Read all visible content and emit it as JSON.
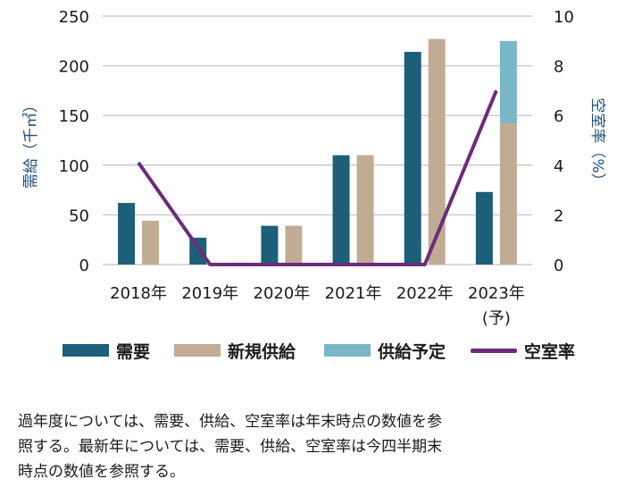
{
  "chart_data": {
    "type": "bar",
    "categories": [
      "2018年",
      "2019年",
      "2020年",
      "2021年",
      "2022年",
      "2023年\n(予)"
    ],
    "ylabel_left": "需給（千㎡）",
    "ylabel_right": "空室率（%）",
    "ylim_left": [
      0,
      250
    ],
    "ylim_right": [
      0,
      10
    ],
    "yticks_left": [
      0,
      50,
      100,
      150,
      200,
      250
    ],
    "yticks_right": [
      0,
      2,
      4,
      6,
      8,
      10
    ],
    "grid": true,
    "legend_placement": "bottom",
    "bar_series": [
      {
        "name": "需要",
        "color": "#1d5f78",
        "values": [
          62,
          27,
          39,
          110,
          214,
          73
        ]
      },
      {
        "name": "新規供給",
        "color": "#c2ab94",
        "values": [
          44,
          0,
          39,
          110,
          227,
          142
        ]
      }
    ],
    "stack_series": {
      "name": "供給予定",
      "color": "#79b6c6",
      "values": [
        0,
        0,
        0,
        0,
        0,
        83
      ]
    },
    "line_series": {
      "name": "空室率",
      "color": "#6b2c78",
      "axis": "right",
      "values": [
        4.1,
        0,
        0,
        0,
        0,
        7.0
      ]
    }
  },
  "legend": {
    "demand": "需要",
    "new_supply": "新規供給",
    "planned_supply": "供給予定",
    "vacancy": "空室率"
  },
  "footnote": "過年度については、需要、供給、空室率は年末時点の数値を参\n照する。最新年については、需要、供給、空室率は今四半期末\n時点の数値を参照する。"
}
